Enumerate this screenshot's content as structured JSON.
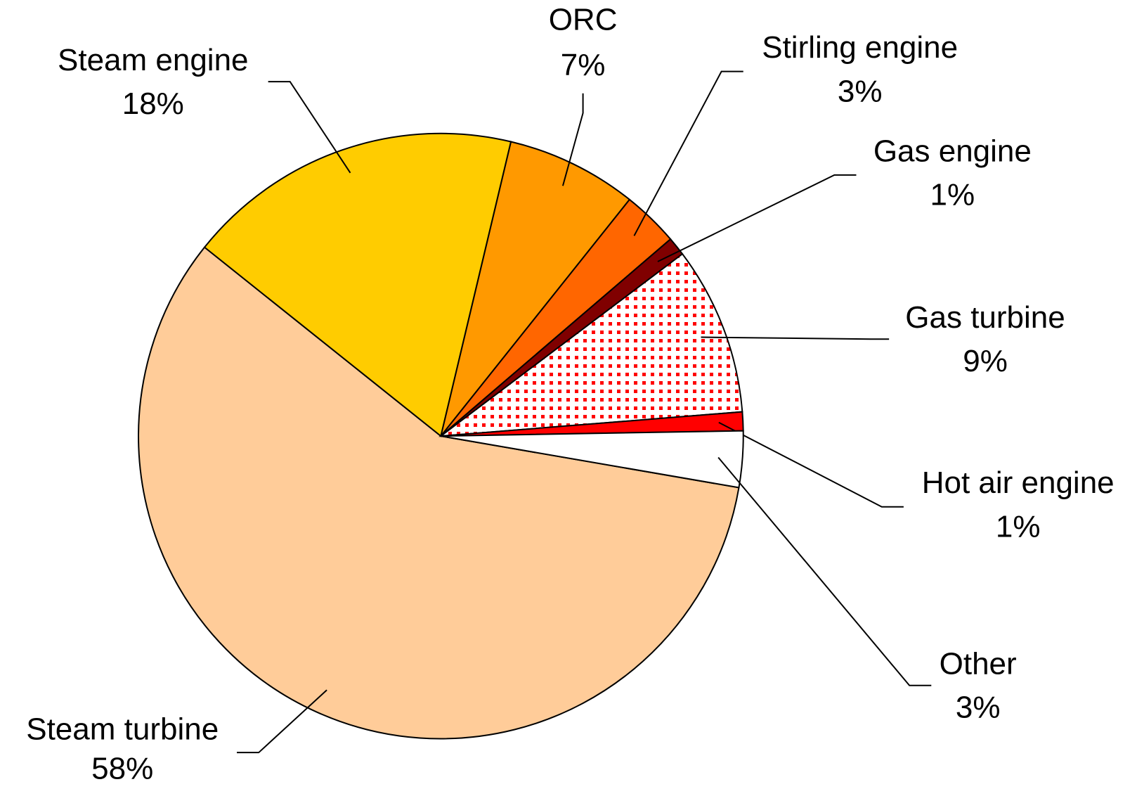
{
  "chart_data": {
    "type": "pie",
    "categories": [
      "Steam turbine",
      "Steam engine",
      "ORC",
      "Stirling engine",
      "Gas engine",
      "Gas turbine",
      "Hot air engine",
      "Other"
    ],
    "values": [
      58,
      18,
      7,
      3,
      1,
      9,
      1,
      3
    ],
    "value_labels": [
      "58%",
      "18%",
      "7%",
      "3%",
      "1%",
      "9%",
      "1%",
      "3%"
    ],
    "colors": [
      "#ffcc99",
      "#ffcc00",
      "#ff9900",
      "#ff6600",
      "#800000",
      "url(#dots)",
      "#ff0000",
      "#ffffff"
    ]
  }
}
